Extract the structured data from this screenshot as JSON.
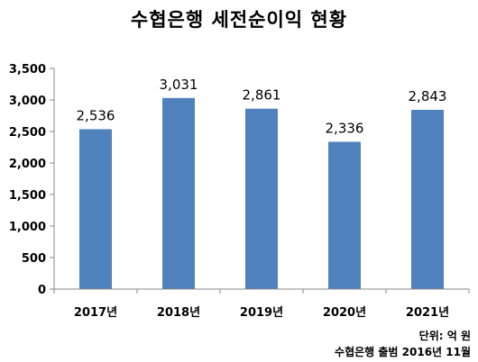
{
  "chart_data": {
    "type": "bar",
    "title": "수협은행 세전순이익 현황",
    "categories": [
      "2017년",
      "2018년",
      "2019년",
      "2020년",
      "2021년"
    ],
    "values": [
      2536,
      3031,
      2861,
      2336,
      2843
    ],
    "data_labels": [
      "2,536",
      "3,031",
      "2,861",
      "2,336",
      "2,843"
    ],
    "ylim": [
      0,
      3500
    ],
    "yticks": [
      0,
      500,
      1000,
      1500,
      2000,
      2500,
      3000,
      3500
    ],
    "ytick_labels": [
      "0",
      "500",
      "1,000",
      "1,500",
      "2,000",
      "2,500",
      "3,000",
      "3,500"
    ],
    "xlabel": "",
    "ylabel": "",
    "grid": false,
    "bar_color": "#4f81bd"
  },
  "notes": {
    "unit": "단위: 억 원",
    "source": "수협은행 출범 2016년 11월"
  }
}
